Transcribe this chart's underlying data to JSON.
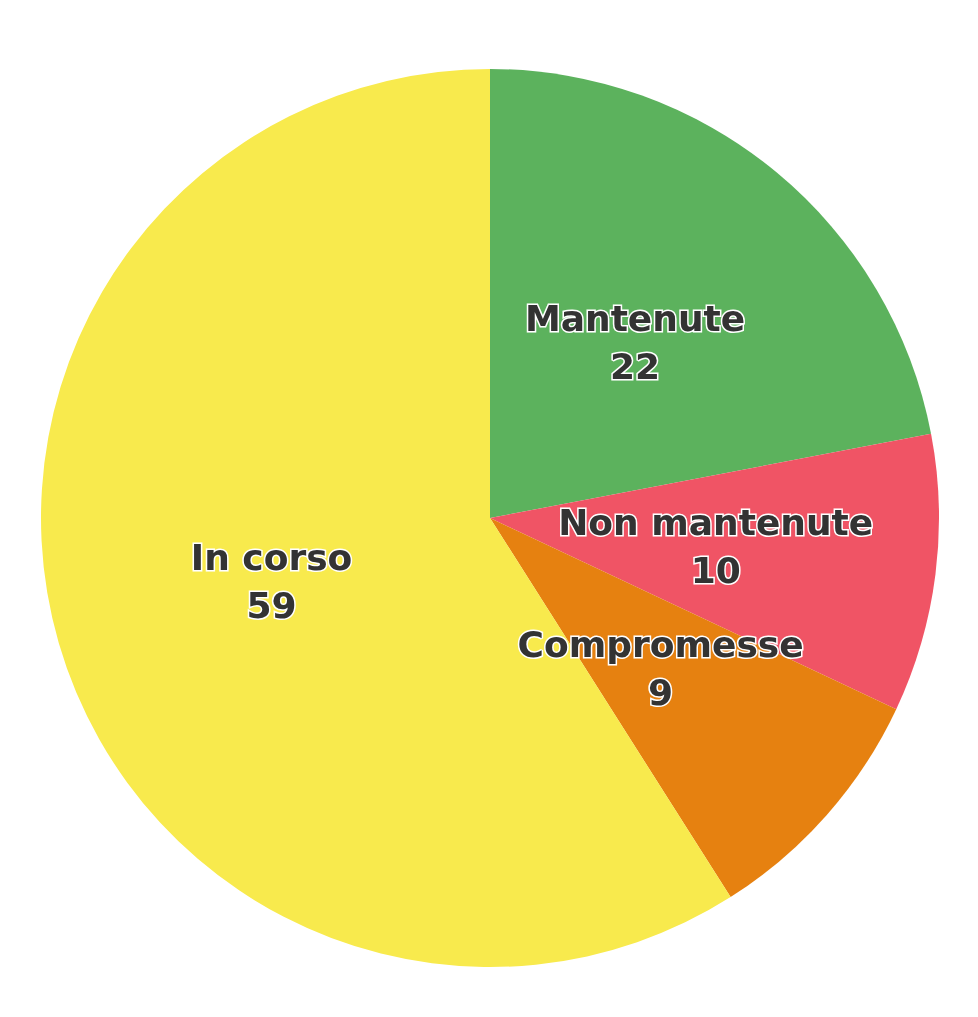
{
  "chart_data": {
    "type": "pie",
    "categories": [
      "Mantenute",
      "Non mantenute",
      "Compromesse",
      "In corso"
    ],
    "values": [
      22,
      10,
      9,
      59
    ],
    "colors": [
      "#5cb25d",
      "#f05465",
      "#e68110",
      "#f8ea4d"
    ],
    "data_labels": true,
    "legend": false
  }
}
